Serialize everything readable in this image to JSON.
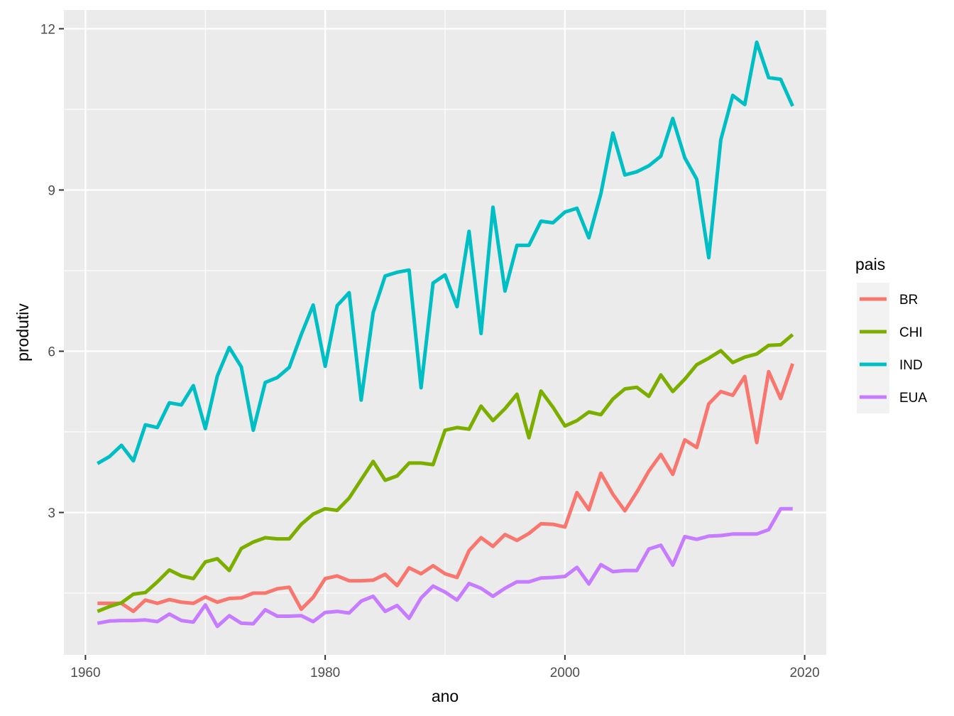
{
  "chart_data": {
    "type": "line",
    "title": "",
    "xlabel": "ano",
    "ylabel": "produtiv",
    "xlim": [
      1958.2,
      2021.8
    ],
    "ylim": [
      0.35,
      12.35
    ],
    "x_ticks": [
      1960,
      1980,
      2000,
      2020
    ],
    "y_ticks": [
      3,
      6,
      9,
      12
    ],
    "grid": true,
    "background": "#EBEBEB",
    "legend": {
      "title": "pais",
      "placement": "right"
    },
    "x": [
      1961,
      1962,
      1963,
      1964,
      1965,
      1966,
      1967,
      1968,
      1969,
      1970,
      1971,
      1972,
      1973,
      1974,
      1975,
      1976,
      1977,
      1978,
      1979,
      1980,
      1981,
      1982,
      1983,
      1984,
      1985,
      1986,
      1987,
      1988,
      1989,
      1990,
      1991,
      1992,
      1993,
      1994,
      1995,
      1996,
      1997,
      1998,
      1999,
      2000,
      2001,
      2002,
      2003,
      2004,
      2005,
      2006,
      2007,
      2008,
      2009,
      2010,
      2011,
      2012,
      2013,
      2014,
      2015,
      2016,
      2017,
      2018,
      2019
    ],
    "series": [
      {
        "name": "BR",
        "color": "#F8766D",
        "values": [
          1.31,
          1.31,
          1.31,
          1.16,
          1.37,
          1.31,
          1.38,
          1.33,
          1.31,
          1.43,
          1.33,
          1.4,
          1.41,
          1.5,
          1.5,
          1.58,
          1.61,
          1.2,
          1.42,
          1.77,
          1.82,
          1.73,
          1.73,
          1.74,
          1.85,
          1.64,
          1.97,
          1.86,
          2.01,
          1.86,
          1.79,
          2.29,
          2.53,
          2.37,
          2.59,
          2.48,
          2.61,
          2.79,
          2.78,
          2.73,
          3.37,
          3.05,
          3.73,
          3.34,
          3.03,
          3.38,
          3.77,
          4.08,
          3.71,
          4.35,
          4.21,
          5.02,
          5.25,
          5.18,
          5.53,
          4.3,
          5.62,
          5.12,
          5.77
        ]
      },
      {
        "name": "CHI",
        "color": "#7CAE00",
        "values": [
          1.16,
          1.25,
          1.32,
          1.48,
          1.51,
          1.71,
          1.93,
          1.82,
          1.77,
          2.08,
          2.14,
          1.92,
          2.33,
          2.45,
          2.53,
          2.51,
          2.51,
          2.78,
          2.97,
          3.07,
          3.04,
          3.27,
          3.61,
          3.95,
          3.6,
          3.68,
          3.92,
          3.92,
          3.89,
          4.53,
          4.58,
          4.55,
          4.98,
          4.71,
          4.93,
          5.2,
          4.39,
          5.26,
          4.96,
          4.61,
          4.71,
          4.87,
          4.82,
          5.11,
          5.3,
          5.33,
          5.16,
          5.56,
          5.25,
          5.48,
          5.75,
          5.87,
          6.01,
          5.79,
          5.89,
          5.95,
          6.11,
          6.12,
          6.31
        ]
      },
      {
        "name": "IND",
        "color": "#00BFC4",
        "values": [
          3.91,
          4.04,
          4.25,
          3.96,
          4.63,
          4.58,
          5.04,
          5.0,
          5.36,
          4.56,
          5.54,
          6.07,
          5.71,
          4.53,
          5.42,
          5.51,
          5.7,
          6.31,
          6.86,
          5.72,
          6.85,
          7.09,
          5.09,
          6.72,
          7.4,
          7.47,
          7.51,
          5.32,
          7.27,
          7.42,
          6.83,
          8.23,
          6.33,
          8.68,
          7.12,
          7.97,
          7.97,
          8.42,
          8.39,
          8.59,
          8.66,
          8.11,
          8.93,
          10.06,
          9.28,
          9.34,
          9.45,
          9.63,
          10.33,
          9.6,
          9.2,
          7.74,
          9.93,
          10.76,
          10.59,
          11.75,
          11.09,
          11.06,
          10.56
        ]
      },
      {
        "name": "EUA",
        "color": "#C77CFF",
        "values": [
          0.94,
          0.98,
          0.99,
          0.99,
          1.0,
          0.97,
          1.11,
          0.99,
          0.96,
          1.28,
          0.88,
          1.08,
          0.94,
          0.93,
          1.19,
          1.07,
          1.07,
          1.08,
          0.97,
          1.14,
          1.16,
          1.13,
          1.35,
          1.44,
          1.16,
          1.27,
          1.03,
          1.41,
          1.63,
          1.52,
          1.37,
          1.68,
          1.59,
          1.44,
          1.59,
          1.71,
          1.71,
          1.78,
          1.79,
          1.81,
          1.98,
          1.67,
          2.03,
          1.9,
          1.92,
          1.92,
          2.32,
          2.39,
          2.02,
          2.55,
          2.5,
          2.56,
          2.57,
          2.6,
          2.6,
          2.6,
          2.68,
          3.07,
          3.07
        ]
      }
    ]
  }
}
